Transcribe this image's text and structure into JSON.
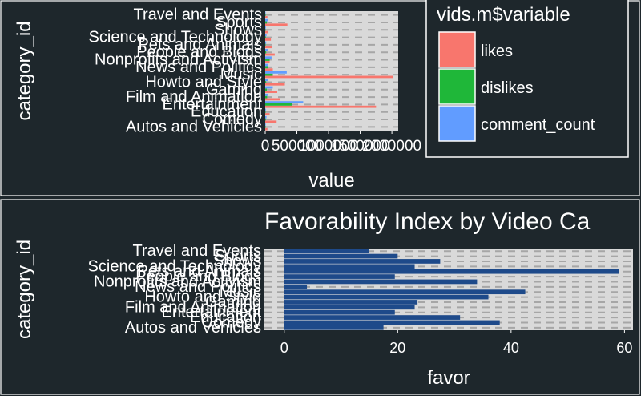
{
  "chart_data": [
    {
      "type": "bar",
      "orientation": "horizontal",
      "grouping": "dodge",
      "title": "",
      "xlabel": "value",
      "ylabel": "category_id",
      "xlim": [
        0,
        2100000
      ],
      "xticks": [
        0,
        500000,
        1000000,
        1500000,
        2000000
      ],
      "xtick_labels": [
        "0",
        "500000",
        "1000000",
        "1500000",
        "2000000"
      ],
      "categories": [
        "Autos and Vehicles",
        "Comedy",
        "Education",
        "Entertainment",
        "Film and Animation",
        "Gaming",
        "Howto and Style",
        "Music",
        "News and Politics",
        "Nonprofits and Activism",
        "People and Blogs",
        "Pets and Animals",
        "Science and Technology",
        "Shows",
        "Sports",
        "Travel and Events"
      ],
      "series": [
        {
          "name": "likes",
          "color": "#f8766d",
          "values": [
            35000,
            180000,
            70000,
            1750000,
            230000,
            190000,
            310000,
            2020000,
            120000,
            70000,
            150000,
            110000,
            90000,
            45000,
            350000,
            35000
          ]
        },
        {
          "name": "dislikes",
          "color": "#1fb739",
          "values": [
            3000,
            10000,
            4000,
            420000,
            30000,
            25000,
            15000,
            120000,
            40000,
            70000,
            15000,
            4000,
            10000,
            5000,
            25000,
            2000
          ]
        },
        {
          "name": "comment_count",
          "color": "#619cff",
          "values": [
            8000,
            20000,
            10000,
            600000,
            40000,
            120000,
            50000,
            340000,
            40000,
            100000,
            40000,
            15000,
            20000,
            10000,
            50000,
            5000
          ]
        }
      ],
      "legend": {
        "title": "vids.m$variable",
        "position": "right",
        "entries": [
          "likes",
          "dislikes",
          "comment_count"
        ]
      },
      "grid": true
    },
    {
      "type": "bar",
      "orientation": "horizontal",
      "title": "Favorability Index by Video Ca",
      "xlabel": "favor",
      "ylabel": "category_id",
      "xlim": [
        -3.5,
        61.5
      ],
      "xticks": [
        0,
        20,
        40,
        60
      ],
      "xtick_labels": [
        "0",
        "20",
        "40",
        "60"
      ],
      "categories": [
        "Autos and Vehicles",
        "Comedy",
        "Education",
        "Entertainment",
        "Film and Animation",
        "Gaming",
        "Howto and Style",
        "Music",
        "News and Politics",
        "Nonprofits and Activism",
        "People and Blogs",
        "Pets and Animals",
        "Science and Technology",
        "Shows",
        "Sports",
        "Travel and Events"
      ],
      "series": [
        {
          "name": "",
          "color": "#1e4a8a",
          "values": [
            17.5,
            38,
            31,
            19.5,
            23,
            23.5,
            36,
            42.5,
            4,
            34,
            19.5,
            59,
            23,
            27.5,
            20,
            15
          ]
        }
      ],
      "grid": true
    }
  ]
}
